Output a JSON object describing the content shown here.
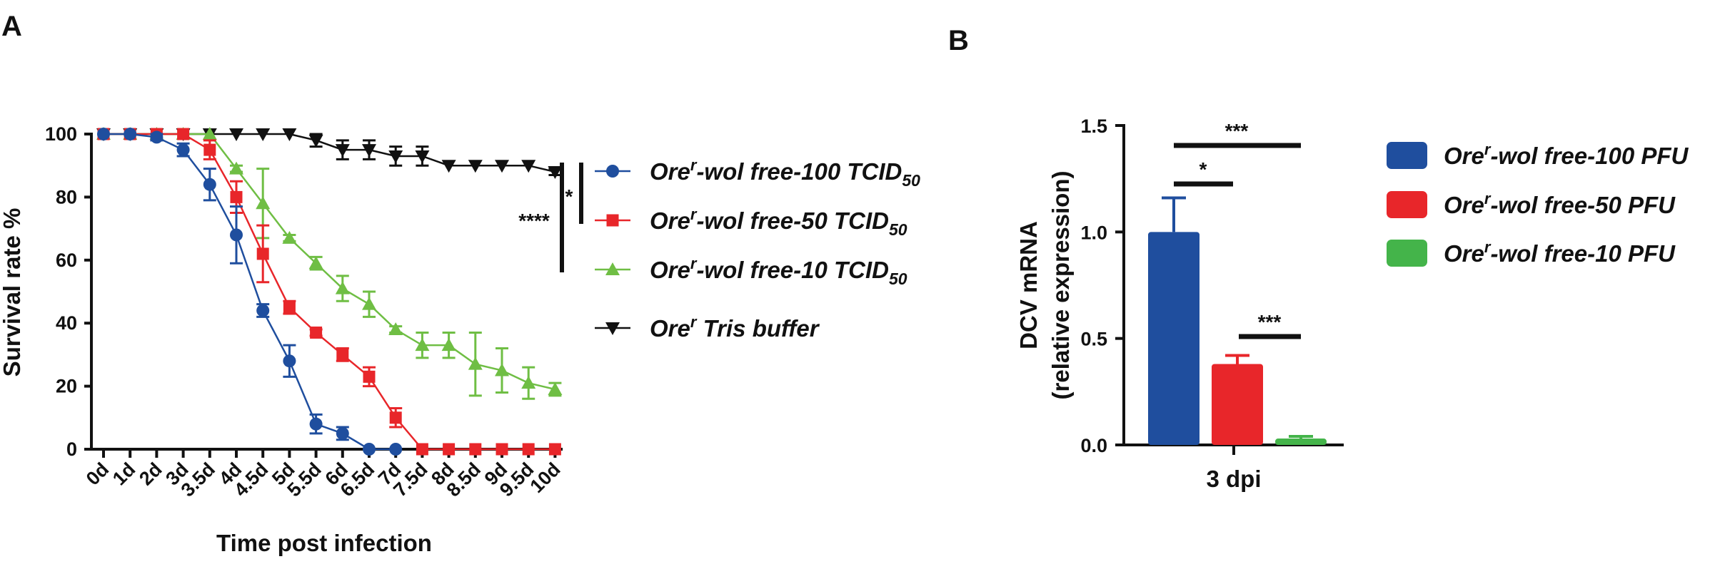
{
  "chart_data": [
    {
      "panel_label": "A",
      "type": "line",
      "title": "",
      "xlabel": "Time post infection",
      "ylabel": "Survival rate %",
      "ylim": [
        0,
        100
      ],
      "yticks": [
        "0",
        "20",
        "40",
        "60",
        "80",
        "100"
      ],
      "categories": [
        "0d",
        "1d",
        "2d",
        "3d",
        "3.5d",
        "4d",
        "4.5d",
        "5d",
        "5.5d",
        "6d",
        "6.5d",
        "7d",
        "7.5d",
        "8d",
        "8.5d",
        "9d",
        "9.5d",
        "10d"
      ],
      "series": [
        {
          "name": "Ore^r-wol free-100 TCID50",
          "legend": {
            "base": "Ore",
            "sup": "r",
            "rest": "-wol free-100 TCID",
            "sub": "50"
          },
          "color": "#1f4e9e",
          "marker": "circle",
          "values": [
            100,
            100,
            99,
            95,
            84,
            68,
            44,
            28,
            8,
            5,
            0,
            0,
            null,
            null,
            null,
            null,
            null,
            null
          ],
          "errors": [
            0,
            0,
            1,
            2,
            5,
            9,
            2,
            5,
            3,
            2,
            0,
            0,
            null,
            null,
            null,
            null,
            null,
            null
          ]
        },
        {
          "name": "Ore^r-wol free-50 TCID50",
          "legend": {
            "base": "Ore",
            "sup": "r",
            "rest": "-wol free-50 TCID",
            "sub": "50"
          },
          "color": "#e8262a",
          "marker": "square",
          "values": [
            100,
            100,
            100,
            100,
            95,
            80,
            62,
            45,
            37,
            30,
            23,
            10,
            0,
            0,
            0,
            0,
            0,
            0
          ],
          "errors": [
            0,
            0,
            0,
            0,
            3,
            5,
            9,
            2,
            1,
            2,
            3,
            3,
            0,
            0,
            0,
            0,
            0,
            0
          ]
        },
        {
          "name": "Ore^r-wol free-10 TCID50",
          "legend": {
            "base": "Ore",
            "sup": "r",
            "rest": "-wol free-10 TCID",
            "sub": "50"
          },
          "color": "#6fbe44",
          "marker": "triangle-up",
          "values": [
            100,
            100,
            100,
            100,
            100,
            89,
            78,
            67,
            59,
            51,
            46,
            38,
            33,
            33,
            27,
            25,
            21,
            19
          ],
          "errors": [
            0,
            0,
            0,
            0,
            0,
            1,
            11,
            1,
            2,
            4,
            4,
            1,
            4,
            4,
            10,
            7,
            5,
            2
          ]
        },
        {
          "name": "Ore^r Tris buffer",
          "legend": {
            "base": "Ore",
            "sup": "r",
            "rest": " Tris buffer",
            "sub": ""
          },
          "color": "#111111",
          "marker": "triangle-down",
          "values": [
            100,
            100,
            100,
            100,
            100,
            100,
            100,
            100,
            98,
            95,
            95,
            93,
            93,
            90,
            90,
            90,
            90,
            88
          ],
          "errors": [
            0,
            0,
            0,
            0,
            0,
            0,
            0,
            0,
            2,
            3,
            3,
            3,
            3,
            0,
            0,
            0,
            0,
            1
          ]
        }
      ],
      "annotations": [
        {
          "text": "*",
          "between": [
            "Ore^r Tris buffer",
            "Ore^r-wol free-100 TCID50"
          ]
        },
        {
          "text": "****",
          "between": [
            "Ore^r Tris buffer",
            "Ore^r-wol free-10 TCID50"
          ]
        }
      ]
    },
    {
      "panel_label": "B",
      "type": "bar",
      "title": "",
      "xlabel": "3 dpi",
      "ylabel": "DCV mRNA",
      "ylabel2": "(relative expression)",
      "ylim": [
        0,
        1.5
      ],
      "yticks": [
        "0.0",
        "0.5",
        "1.0",
        "1.5"
      ],
      "categories": [
        "3 dpi"
      ],
      "series": [
        {
          "name": "Ore^r-wol free-100 PFU",
          "legend": {
            "base": "Ore",
            "sup": "r",
            "rest": "-wol free-100 PFU"
          },
          "color": "#1f4e9e",
          "values": [
            1.0
          ],
          "errors": [
            0.16
          ]
        },
        {
          "name": "Ore^r-wol free-50 PFU",
          "legend": {
            "base": "Ore",
            "sup": "r",
            "rest": "-wol free-50 PFU"
          },
          "color": "#e8262a",
          "values": [
            0.38
          ],
          "errors": [
            0.04
          ]
        },
        {
          "name": "Ore^r-wol free-10 PFU",
          "legend": {
            "base": "Ore",
            "sup": "r",
            "rest": "-wol free-10 PFU"
          },
          "color": "#44b44a",
          "values": [
            0.03
          ],
          "errors": [
            0.01
          ]
        }
      ],
      "annotations": [
        {
          "text": "***",
          "between": [
            "Ore^r-wol free-100 PFU",
            "Ore^r-wol free-10 PFU"
          ]
        },
        {
          "text": "*",
          "between": [
            "Ore^r-wol free-100 PFU",
            "Ore^r-wol free-50 PFU"
          ]
        },
        {
          "text": "***",
          "between": [
            "Ore^r-wol free-50 PFU",
            "Ore^r-wol free-10 PFU"
          ]
        }
      ]
    }
  ]
}
